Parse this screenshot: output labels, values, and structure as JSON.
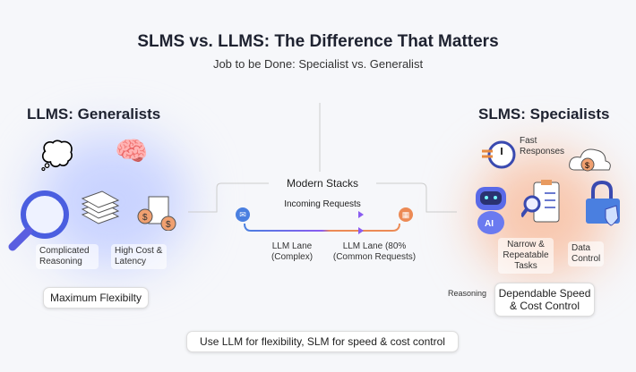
{
  "header": {
    "title": "SLMS vs. LLMS: The Difference That Matters",
    "subtitle": "Job to be Done: Specialist vs. Generalist"
  },
  "left": {
    "title": "LLMS: Generalists",
    "labels": [
      "Complicated Reasoning",
      "High Cost & Latency"
    ],
    "callout": "Maximum Flexibilty",
    "icons": [
      "thought-bubble-gear-question-icon",
      "brain-icon",
      "magnifier-icon",
      "document-stack-icon",
      "invoice-dollar-icon"
    ]
  },
  "center": {
    "title": "Modern Stacks",
    "incoming": "Incoming Requests",
    "lane_left": "LLM Lane (Complex)",
    "lane_right": "LLM Lane (80% (Common Requests)",
    "colors": {
      "blue": "#4a7fe0",
      "purple": "#8a5cf0",
      "orange": "#ec8a55"
    }
  },
  "right": {
    "title": "SLMS: Specialists",
    "labels": [
      "Fast Responses",
      "Narrow & Repeatable Tasks",
      "Data Control",
      "Reasoning"
    ],
    "callout": "Dependable Speed & Cost Control",
    "icons": [
      "clock-icon",
      "cloud-dollar-icon",
      "ai-robot-icon",
      "clipboard-search-icon",
      "lock-shield-icon"
    ]
  },
  "footer": {
    "text": "Use LLM for flexibility, SLM for speed & cost control"
  }
}
